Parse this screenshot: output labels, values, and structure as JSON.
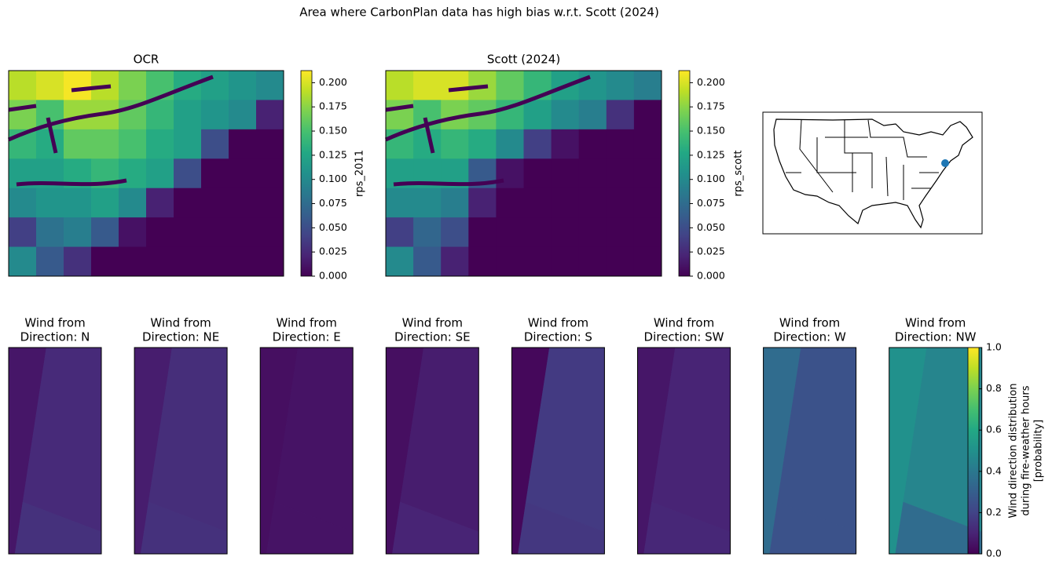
{
  "title": "Area where CarbonPlan data has high bias w.r.t. Scott (2024)",
  "chart_data": [
    {
      "type": "heatmap",
      "title": "OCR",
      "colorbar_label": "rps_2011",
      "zlim": [
        0,
        0.2125
      ],
      "zticks": [
        {
          "value": 0,
          "label": "0.000"
        },
        {
          "value": 0.025,
          "label": "0.025"
        },
        {
          "value": 0.05,
          "label": "0.050"
        },
        {
          "value": 0.075,
          "label": "0.075"
        },
        {
          "value": 0.1,
          "label": "0.100"
        },
        {
          "value": 0.125,
          "label": "0.125"
        },
        {
          "value": 0.15,
          "label": "0.150"
        },
        {
          "value": 0.175,
          "label": "0.175"
        },
        {
          "value": 0.2,
          "label": "0.200"
        }
      ],
      "grid": [
        [
          0.19,
          0.2,
          0.21,
          0.19,
          0.17,
          0.15,
          0.13,
          0.12,
          0.11,
          0.1
        ],
        [
          0.17,
          0.15,
          0.18,
          0.18,
          0.16,
          0.14,
          0.12,
          0.11,
          0.1,
          0.02
        ],
        [
          0.14,
          0.13,
          0.16,
          0.16,
          0.15,
          0.13,
          0.12,
          0.05,
          0,
          0
        ],
        [
          0.12,
          0.12,
          0.13,
          0.14,
          0.13,
          0.12,
          0.05,
          0,
          0,
          0
        ],
        [
          0.1,
          0.11,
          0.11,
          0.12,
          0.1,
          0.02,
          0,
          0,
          0,
          0
        ],
        [
          0.04,
          0.08,
          0.09,
          0.06,
          0.01,
          0,
          0,
          0,
          0,
          0
        ],
        [
          0.1,
          0.06,
          0.03,
          0,
          0,
          0,
          0,
          0,
          0,
          0
        ]
      ]
    },
    {
      "type": "heatmap",
      "title": "Scott (2024)",
      "colorbar_label": "rps_scott",
      "zlim": [
        0,
        0.2125
      ],
      "zticks": [
        {
          "value": 0,
          "label": "0.000"
        },
        {
          "value": 0.025,
          "label": "0.025"
        },
        {
          "value": 0.05,
          "label": "0.050"
        },
        {
          "value": 0.075,
          "label": "0.075"
        },
        {
          "value": 0.1,
          "label": "0.100"
        },
        {
          "value": 0.125,
          "label": "0.125"
        },
        {
          "value": 0.15,
          "label": "0.150"
        },
        {
          "value": 0.175,
          "label": "0.175"
        },
        {
          "value": 0.2,
          "label": "0.200"
        }
      ],
      "grid": [
        [
          0.19,
          0.2,
          0.2,
          0.18,
          0.16,
          0.14,
          0.12,
          0.11,
          0.1,
          0.09
        ],
        [
          0.17,
          0.15,
          0.17,
          0.16,
          0.14,
          0.12,
          0.1,
          0.09,
          0.03,
          0
        ],
        [
          0.14,
          0.13,
          0.14,
          0.13,
          0.1,
          0.04,
          0.01,
          0,
          0,
          0
        ],
        [
          0.12,
          0.12,
          0.12,
          0.06,
          0.01,
          0,
          0,
          0,
          0,
          0
        ],
        [
          0.1,
          0.1,
          0.09,
          0.02,
          0,
          0,
          0,
          0,
          0,
          0
        ],
        [
          0.04,
          0.07,
          0.05,
          0,
          0,
          0,
          0,
          0,
          0,
          0
        ],
        [
          0.1,
          0.06,
          0.02,
          0,
          0,
          0,
          0,
          0,
          0,
          0
        ]
      ]
    },
    {
      "type": "wind-panels",
      "colorbar_label": [
        "Wind direction distribution",
        "during fire-weather hours",
        "[probability]"
      ],
      "zlim": [
        0,
        1
      ],
      "zticks": [
        {
          "value": 0,
          "label": "0.0"
        },
        {
          "value": 0.2,
          "label": "0.2"
        },
        {
          "value": 0.4,
          "label": "0.4"
        },
        {
          "value": 0.6,
          "label": "0.6"
        },
        {
          "value": 0.8,
          "label": "0.8"
        },
        {
          "value": 1,
          "label": "1.0"
        }
      ],
      "panels": [
        {
          "title": [
            "Wind from",
            "Direction: N"
          ],
          "values": [
            0.06,
            0.12,
            0.14
          ]
        },
        {
          "title": [
            "Wind from",
            "Direction: NE"
          ],
          "values": [
            0.08,
            0.13,
            0.14
          ]
        },
        {
          "title": [
            "Wind from",
            "Direction: E"
          ],
          "values": [
            0.04,
            0.05,
            0.05
          ]
        },
        {
          "title": [
            "Wind from",
            "Direction: SE"
          ],
          "values": [
            0.04,
            0.08,
            0.1
          ]
        },
        {
          "title": [
            "Wind from",
            "Direction: S"
          ],
          "values": [
            0.02,
            0.17,
            0.16
          ]
        },
        {
          "title": [
            "Wind from",
            "Direction: SW"
          ],
          "values": [
            0.06,
            0.1,
            0.11
          ]
        },
        {
          "title": [
            "Wind from",
            "Direction: W"
          ],
          "values": [
            0.35,
            0.25,
            0.25
          ]
        },
        {
          "title": [
            "Wind from",
            "Direction: NW"
          ],
          "values": [
            0.5,
            0.45,
            0.35
          ]
        }
      ]
    }
  ]
}
